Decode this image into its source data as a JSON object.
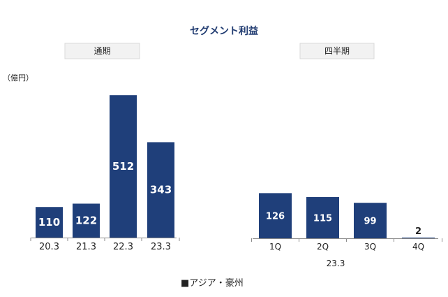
{
  "chart_data": {
    "type": "bar",
    "title": "セグメント利益",
    "unit": "（億円）",
    "legend": [
      "■アジア・豪州"
    ],
    "panels": [
      {
        "label": "通期",
        "categories": [
          "20.3",
          "21.3",
          "22.3",
          "23.3"
        ],
        "series": [
          {
            "name": "アジア・豪州",
            "values": [
              110,
              122,
              512,
              343
            ]
          }
        ],
        "ylim": [
          0,
          520
        ]
      },
      {
        "label": "四半期",
        "categories": [
          "1Q",
          "2Q",
          "3Q",
          "4Q"
        ],
        "group_label": "23.3",
        "series": [
          {
            "name": "アジア・豪州",
            "values": [
              126,
              115,
              99,
              2
            ]
          }
        ],
        "ylim": [
          0,
          232
        ]
      }
    ],
    "colors": {
      "bar": "#1f3f7a",
      "axis": "#8c8c8c"
    }
  }
}
